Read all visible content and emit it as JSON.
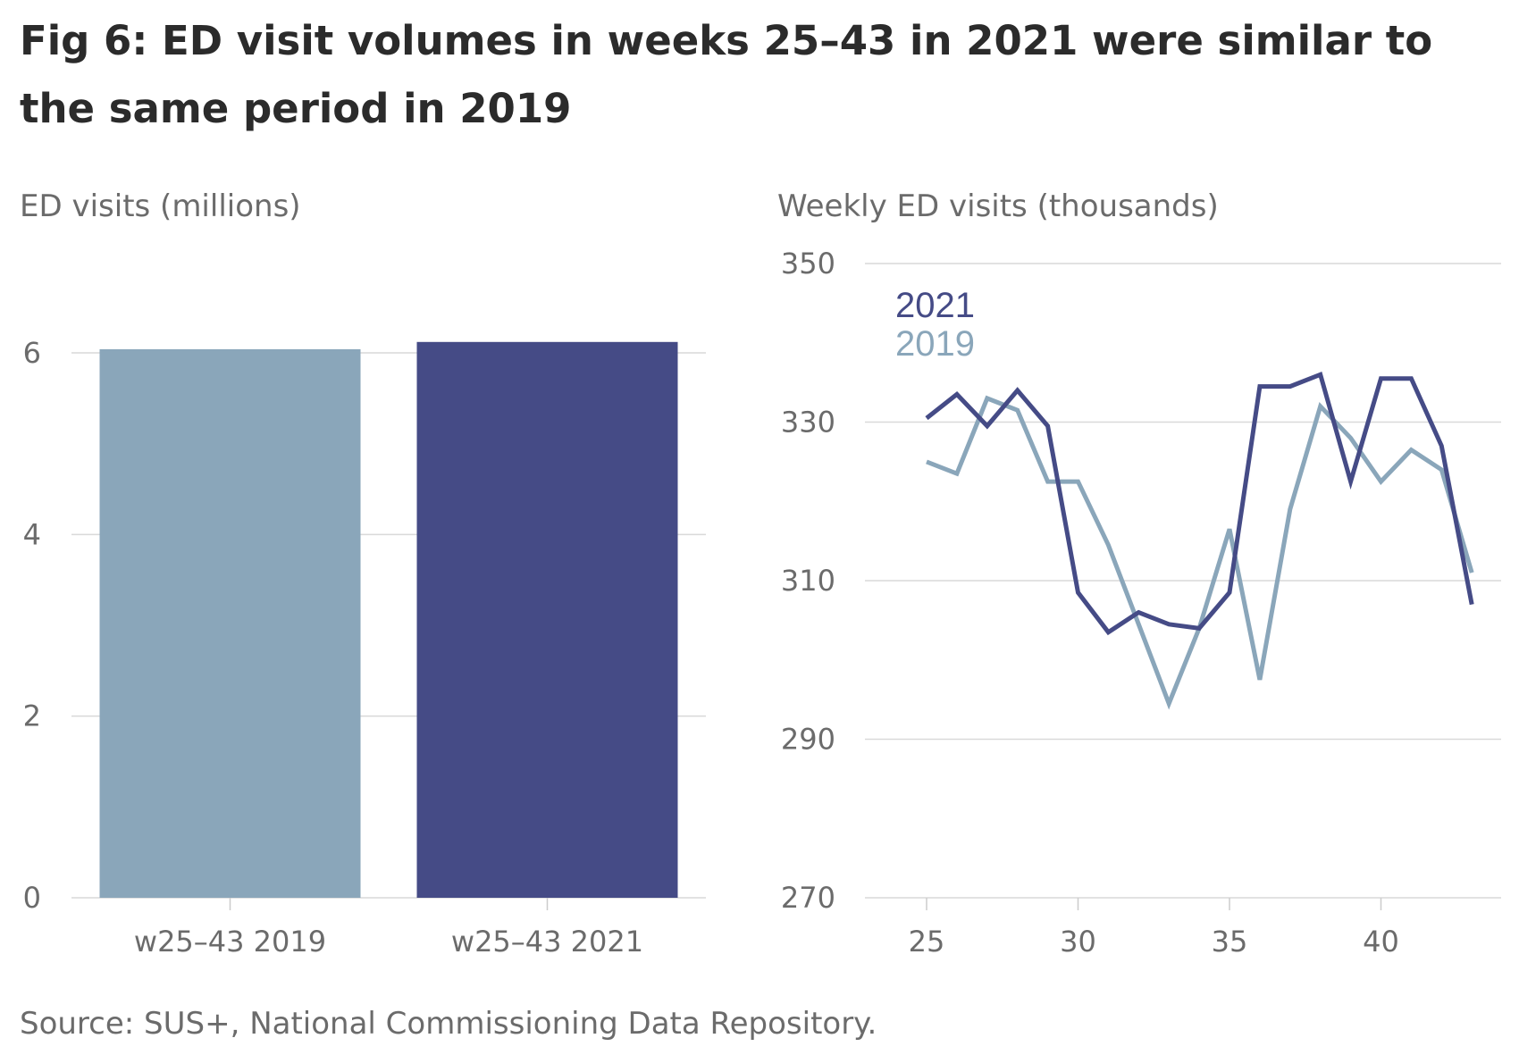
{
  "title": "Fig 6: ED visit volumes in weeks 25–43 in 2021 were similar to the same period in 2019",
  "source": "Source: SUS+, National Commissioning Data Repository.",
  "colors": {
    "y2019": "#8aa6ba",
    "y2021": "#454b86",
    "grid": "#d9d9d9",
    "axis_text": "#6b6b6b",
    "title": "#2b2b2b"
  },
  "chart_data": [
    {
      "type": "bar",
      "ylabel": "ED visits (millions)",
      "categories": [
        "w25–43 2019",
        "w25–43 2021"
      ],
      "values": [
        6.04,
        6.12
      ],
      "colors": [
        "#8aa6ba",
        "#454b86"
      ],
      "ylim": [
        0,
        6
      ],
      "yticks": [
        "0",
        "2",
        "4",
        "6"
      ],
      "grid": true
    },
    {
      "type": "line",
      "ylabel": "Weekly ED visits (thousands)",
      "x": [
        25,
        26,
        27,
        28,
        29,
        30,
        31,
        32,
        33,
        34,
        35,
        36,
        37,
        38,
        39,
        40,
        41,
        42,
        43
      ],
      "xticks": [
        "25",
        "30",
        "35",
        "40"
      ],
      "yticks": [
        "270",
        "290",
        "310",
        "330",
        "350"
      ],
      "ylim": [
        270,
        350
      ],
      "grid": true,
      "legend_position": "top-left",
      "series": [
        {
          "name": "2021",
          "color": "#454b86",
          "values": [
            330.5,
            333.5,
            329.5,
            334,
            329.5,
            308.5,
            303.5,
            306,
            304.5,
            304,
            308.5,
            334.5,
            334.5,
            336,
            322.5,
            335.5,
            335.5,
            327,
            307
          ]
        },
        {
          "name": "2019",
          "color": "#8aa6ba",
          "values": [
            325,
            323.5,
            333,
            331.5,
            322.5,
            322.5,
            314.5,
            304.5,
            294.5,
            304,
            316.5,
            297.5,
            319,
            332,
            328,
            322.5,
            326.5,
            324,
            311
          ]
        }
      ]
    }
  ]
}
